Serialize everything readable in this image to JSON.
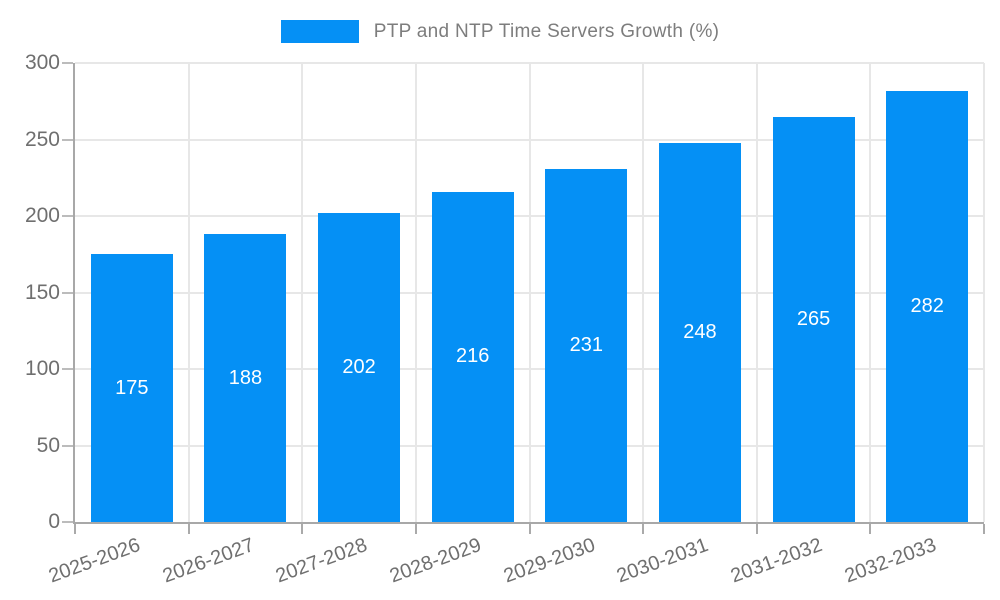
{
  "chart_data": {
    "type": "bar",
    "title": "PTP and NTP Time Servers Growth (%)",
    "legend": [
      "PTP and NTP Time Servers Growth (%)"
    ],
    "legend_position": "top-center",
    "categories": [
      "2025-2026",
      "2026-2027",
      "2027-2028",
      "2028-2029",
      "2029-2030",
      "2030-2031",
      "2031-2032",
      "2032-2033"
    ],
    "values": [
      175,
      188,
      202,
      216,
      231,
      248,
      265,
      282
    ],
    "value_labels_visible": true,
    "xlabel": "",
    "ylabel": "",
    "ylim": [
      0,
      300
    ],
    "yticks": [
      0,
      50,
      100,
      150,
      200,
      250,
      300
    ],
    "grid": true,
    "x_label_rotation_deg": -20,
    "bar_color": "#0590f5",
    "value_label_color": "#ffffff",
    "axis_text_color": "#6f6f6f",
    "gridline_color": "#e7e7e7"
  }
}
